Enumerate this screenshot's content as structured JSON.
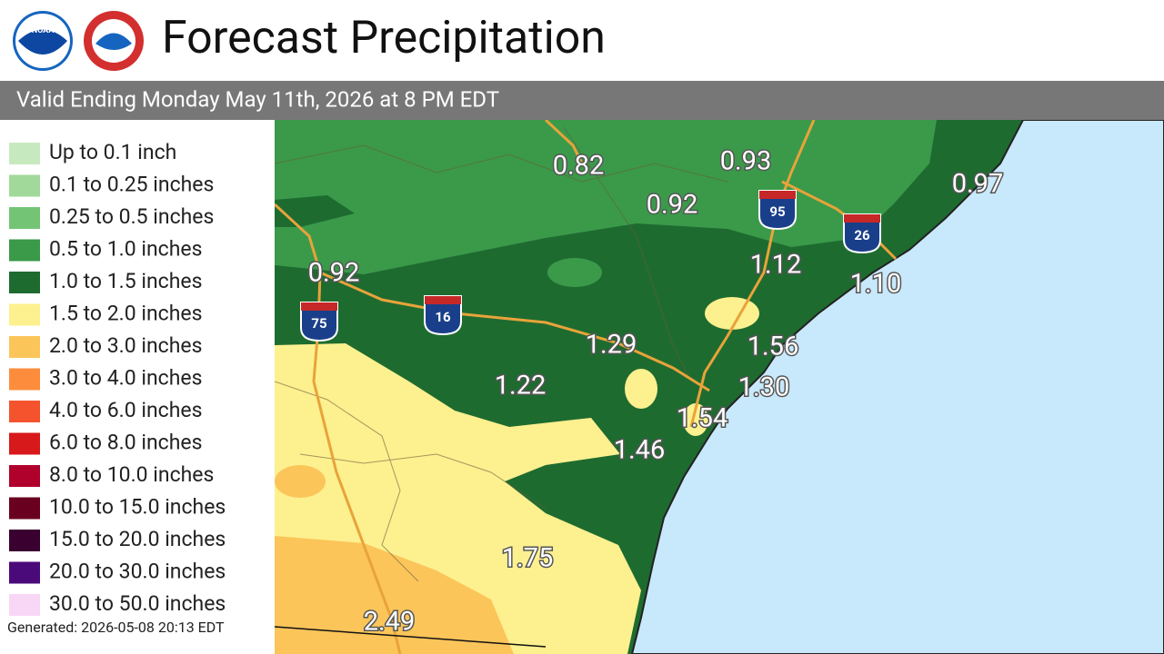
{
  "header": {
    "title": "Forecast Precipitation",
    "logo": "NOAA",
    "subtitle": "Valid Ending Monday May 11th, 2026 at 8 PM EDT"
  },
  "legend": [
    {
      "label": "Up to 0.1 inch",
      "color": "#c7e9c0"
    },
    {
      "label": "0.1 to 0.25 inches",
      "color": "#a1d99b"
    },
    {
      "label": "0.25 to 0.5 inches",
      "color": "#74c476"
    },
    {
      "label": "0.5 to 1.0 inches",
      "color": "#3a9a4a"
    },
    {
      "label": "1.0 to 1.5 inches",
      "color": "#1e6b30"
    },
    {
      "label": "1.5 to 2.0 inches",
      "color": "#fdf08f"
    },
    {
      "label": "2.0 to 3.0 inches",
      "color": "#fbc55a"
    },
    {
      "label": "3.0 to 4.0 inches",
      "color": "#fd8d3c"
    },
    {
      "label": "4.0 to 6.0 inches",
      "color": "#f4532e"
    },
    {
      "label": "6.0 to 8.0 inches",
      "color": "#d7191c"
    },
    {
      "label": "8.0 to 10.0 inches",
      "color": "#b0002c"
    },
    {
      "label": "10.0 to 15.0 inches",
      "color": "#6a0020"
    },
    {
      "label": "15.0 to 20.0 inches",
      "color": "#3a0030"
    },
    {
      "label": "20.0 to 30.0 inches",
      "color": "#4b0a7a"
    },
    {
      "label": "30.0 to 50.0 inches",
      "color": "#f8d6f5"
    }
  ],
  "map": {
    "amounts": [
      "0.82",
      "0.93",
      "0.97",
      "0.92",
      "1.12",
      "1.10",
      "0.92",
      "1.56",
      "1.29",
      "1.30",
      "1.22",
      "1.54",
      "1.46",
      "1.75",
      "2.49"
    ],
    "highways": [
      "95",
      "26",
      "75",
      "16"
    ]
  },
  "footer": {
    "generated": "Generated: 2026-05-08 20:13 EDT"
  }
}
